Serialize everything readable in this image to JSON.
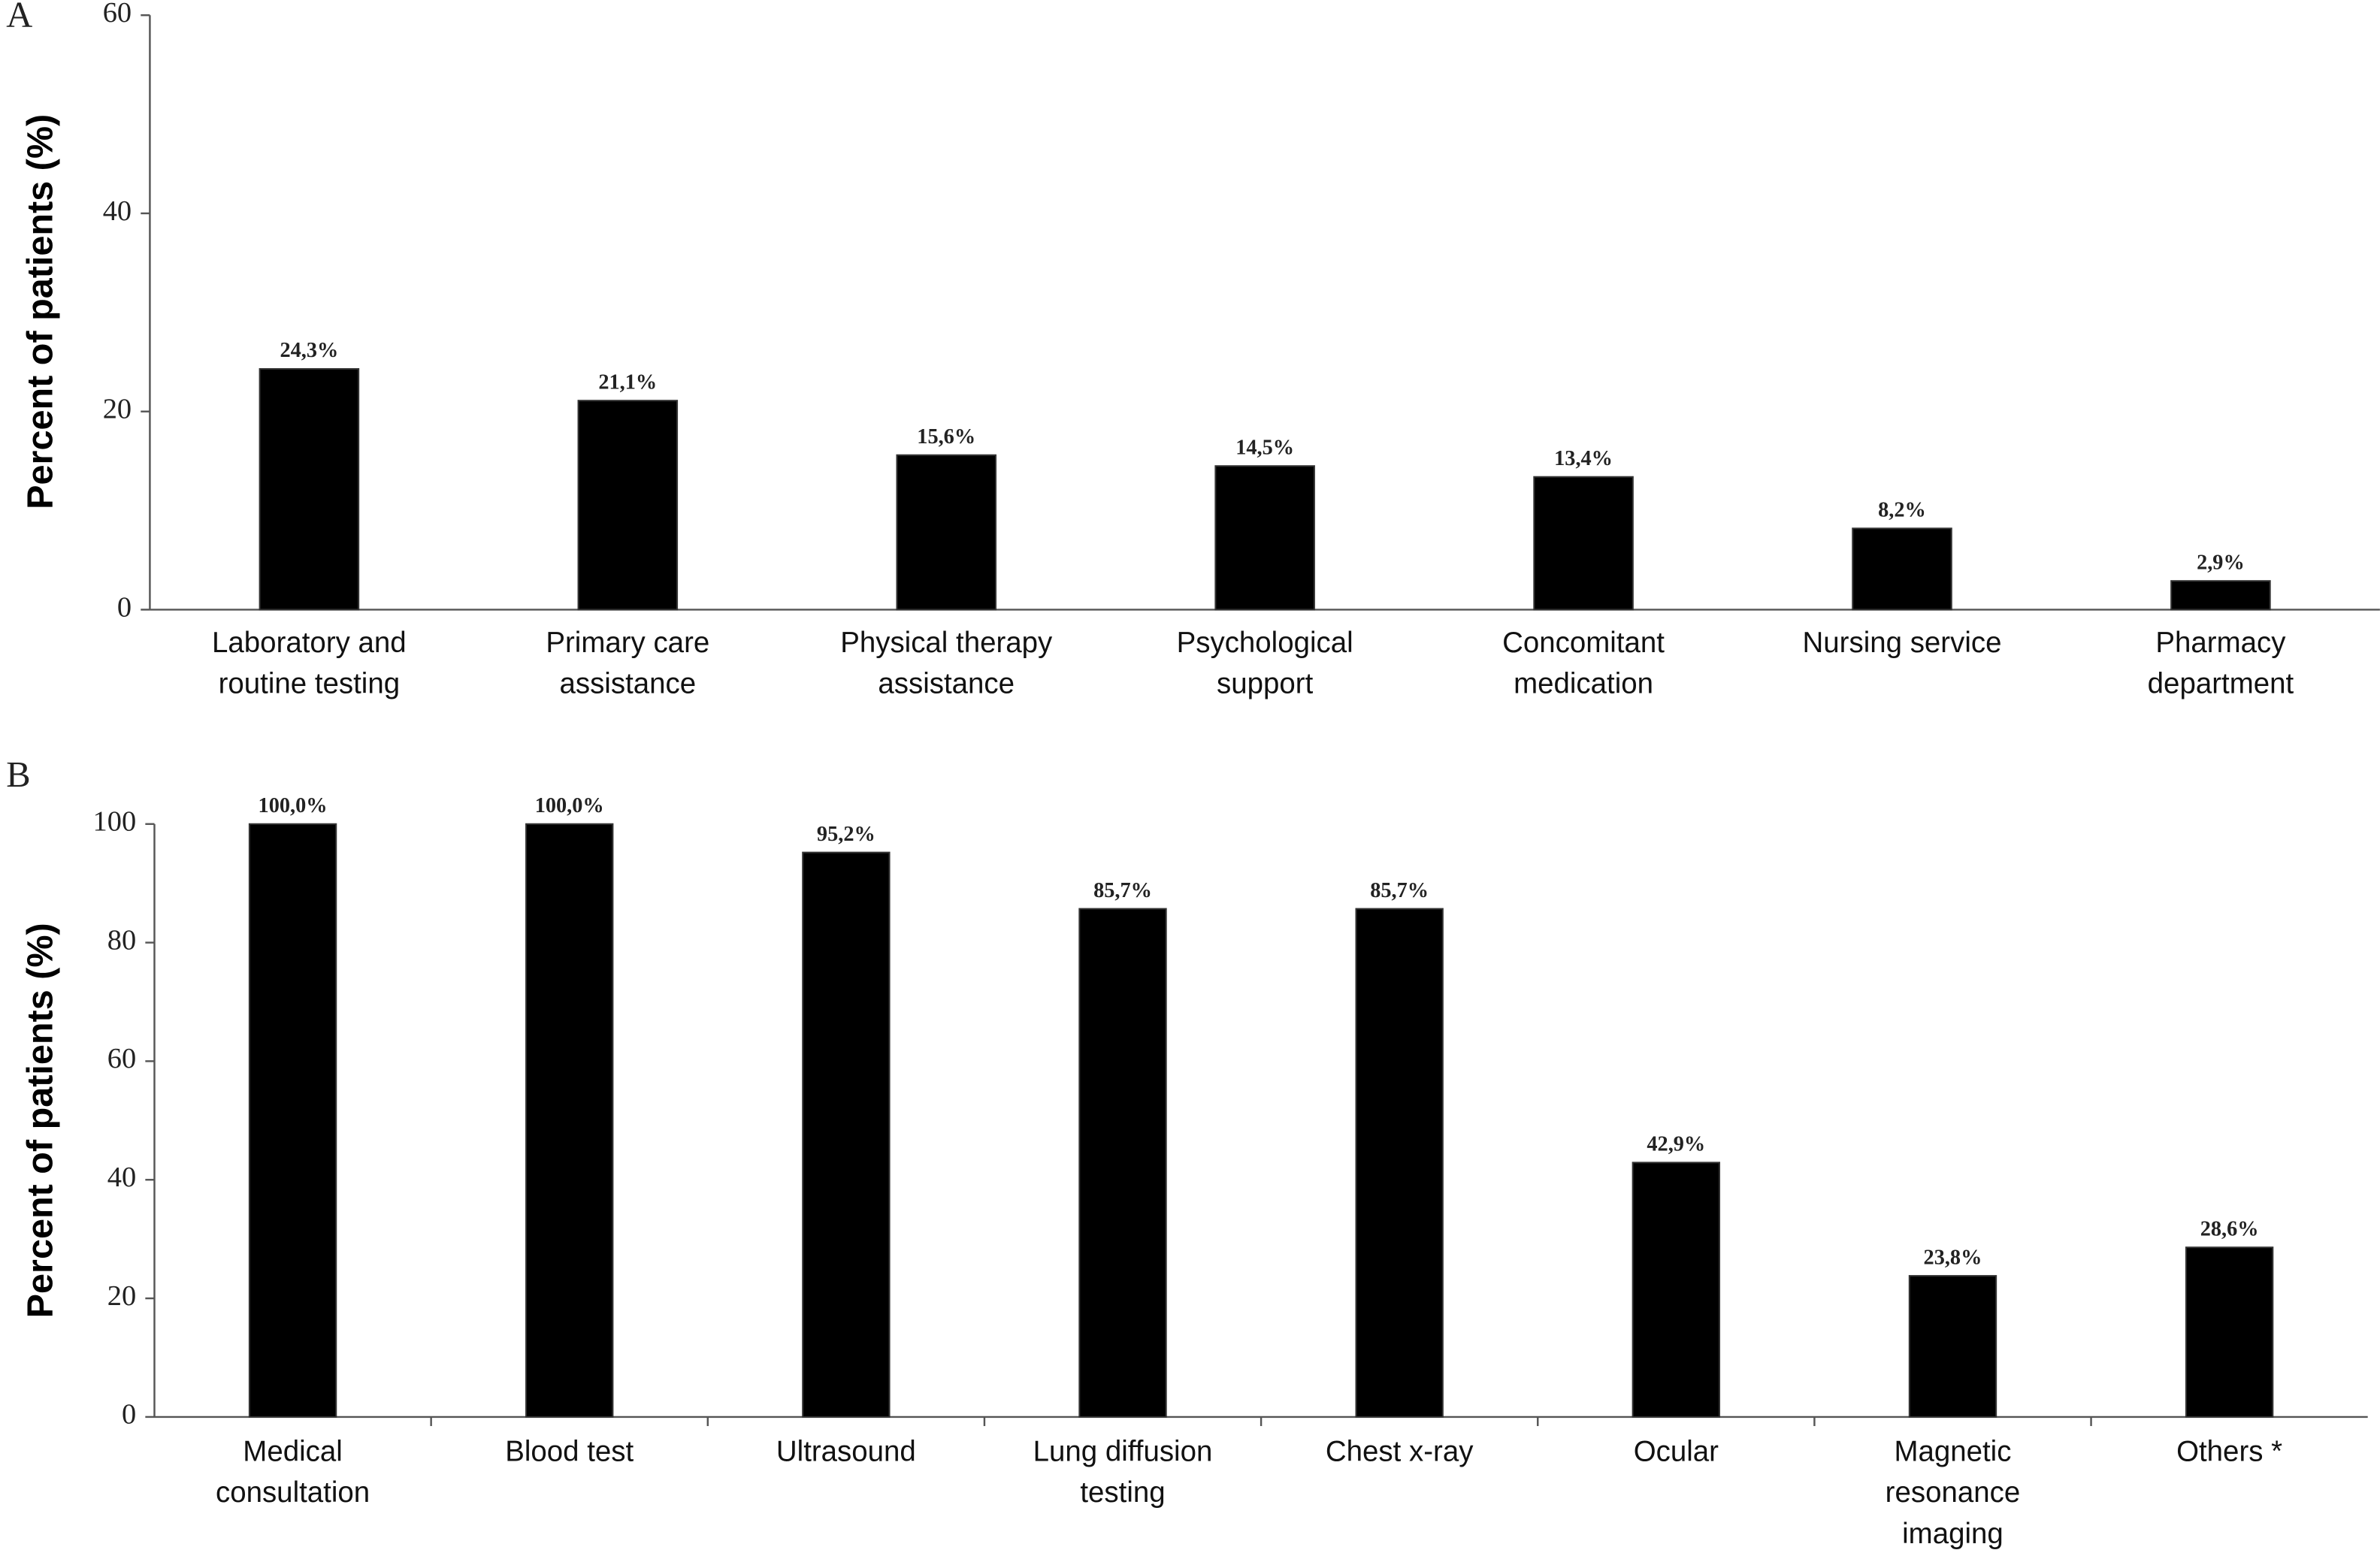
{
  "chart_data": [
    {
      "type": "bar",
      "label": "A",
      "y_label": "Percent of patients (%)",
      "categories": [
        "Laboratory and routine testing",
        "Primary care assistance",
        "Physical therapy assistance",
        "Psychological support",
        "Concomitant medication",
        "Nursing service",
        "Pharmacy department"
      ],
      "values": [
        24.3,
        21.1,
        15.6,
        14.5,
        13.4,
        8.2,
        2.9
      ],
      "value_labels": [
        "24,3%",
        "21,1%",
        "15,6%",
        "14,5%",
        "13,4%",
        "8,2%",
        "2,9%"
      ],
      "color": "#000000",
      "ylim": [
        0,
        60
      ],
      "yticks": [
        0,
        20,
        40,
        60
      ]
    },
    {
      "type": "bar",
      "label": "B",
      "y_label": "Percent of patients (%)",
      "categories": [
        "Medical consultation",
        "Blood test",
        "Ultrasound",
        "Lung diffusion testing",
        "Chest x-ray",
        "Ocular",
        "Magnetic resonance imaging",
        "Others *"
      ],
      "values": [
        100.0,
        100.0,
        95.2,
        85.7,
        85.7,
        42.9,
        23.8,
        28.6
      ],
      "value_labels": [
        "100,0%",
        "100,0%",
        "95,2%",
        "85,7%",
        "85,7%",
        "42,9%",
        "23,8%",
        "28,6%"
      ],
      "color": "#000000",
      "ylim": [
        0,
        100
      ],
      "yticks": [
        0,
        20,
        40,
        60,
        80,
        100
      ]
    }
  ]
}
